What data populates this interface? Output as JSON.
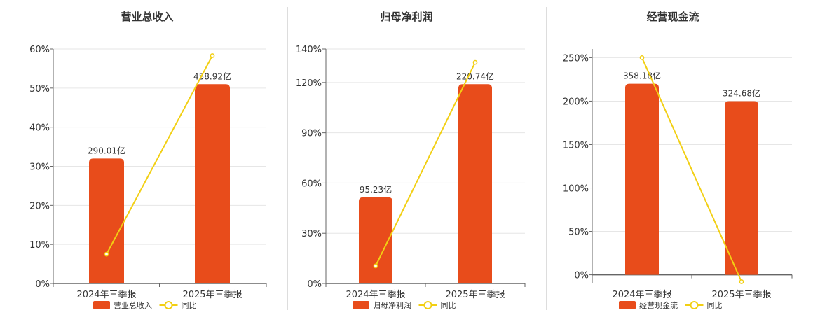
{
  "colors": {
    "bar": "#e84c1b",
    "line": "#f2cf13",
    "grid": "#e6e6e6",
    "axis": "#666666",
    "divider": "#bbbbbb"
  },
  "chart_data": [
    {
      "type": "bar+line",
      "title": "营业总收入",
      "categories": [
        "2024年三季报",
        "2025年三季报"
      ],
      "yticks": [
        "0%",
        "10%",
        "20%",
        "30%",
        "40%",
        "50%",
        "60%"
      ],
      "ylim": [
        0,
        60
      ],
      "series": [
        {
          "name": "营业总收入",
          "type": "bar",
          "values": [
            32,
            51
          ],
          "labels": [
            "290.01亿",
            "458.92亿"
          ]
        },
        {
          "name": "同比",
          "type": "line",
          "values": [
            7.5,
            58.3
          ]
        }
      ],
      "legend": [
        "营业总收入",
        "同比"
      ]
    },
    {
      "type": "bar+line",
      "title": "归母净利润",
      "categories": [
        "2024年三季报",
        "2025年三季报"
      ],
      "yticks": [
        "0%",
        "30%",
        "60%",
        "90%",
        "120%",
        "140%"
      ],
      "ytick_values": [
        0,
        30,
        60,
        90,
        120,
        140
      ],
      "ylim": [
        0,
        140
      ],
      "series": [
        {
          "name": "归母净利润",
          "type": "bar",
          "values": [
            51.5,
            119
          ],
          "labels": [
            "95.23亿",
            "220.74亿"
          ]
        },
        {
          "name": "同比",
          "type": "line",
          "values": [
            10.5,
            132
          ]
        }
      ],
      "legend": [
        "归母净利润",
        "同比"
      ]
    },
    {
      "type": "bar+line",
      "title": "经营现金流",
      "categories": [
        "2024年三季报",
        "2025年三季报"
      ],
      "yticks": [
        "0%",
        "50%",
        "100%",
        "150%",
        "200%",
        "250%"
      ],
      "ytick_values": [
        0,
        50,
        100,
        150,
        200,
        250
      ],
      "ylim": [
        -10,
        260
      ],
      "series": [
        {
          "name": "经营现金流",
          "type": "bar",
          "values": [
            220,
            200
          ],
          "labels": [
            "358.18亿",
            "324.68亿"
          ]
        },
        {
          "name": "同比",
          "type": "line",
          "values": [
            250,
            -8
          ]
        }
      ],
      "legend": [
        "经营现金流",
        "同比"
      ]
    }
  ]
}
